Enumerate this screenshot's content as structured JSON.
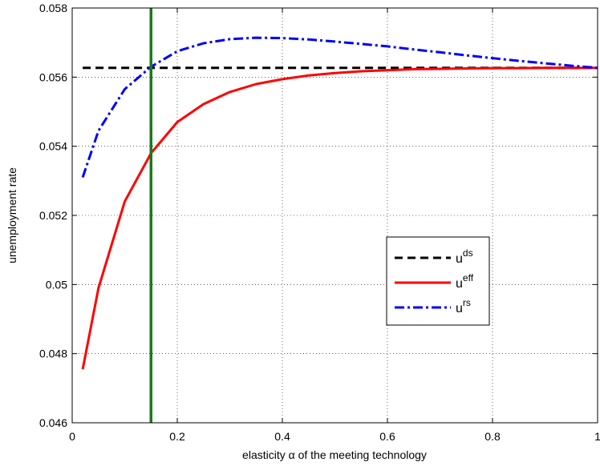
{
  "chart_data": {
    "type": "line",
    "title": "",
    "xlabel": "elasticity α of the meeting technology",
    "ylabel": "unemployment rate",
    "xlim": [
      0,
      1
    ],
    "ylim": [
      0.046,
      0.058
    ],
    "xticks": [
      0,
      0.2,
      0.4,
      0.6,
      0.8,
      1
    ],
    "xtick_labels": [
      "0",
      "0.2",
      "0.4",
      "0.6",
      "0.8",
      "1"
    ],
    "yticks": [
      0.046,
      0.048,
      0.05,
      0.052,
      0.054,
      0.056,
      0.058
    ],
    "ytick_labels": [
      "0.046",
      "0.048",
      "0.05",
      "0.052",
      "0.054",
      "0.056",
      "0.058"
    ],
    "grid": true,
    "legend_position": "right",
    "vertical_line": {
      "x": 0.15,
      "color": "#1a7a1a"
    },
    "series": [
      {
        "name": "u",
        "sup": "ds",
        "color": "#000000",
        "style": "dashed",
        "x": [
          0.02,
          1.0
        ],
        "y": [
          0.05627,
          0.05627
        ]
      },
      {
        "name": "u",
        "sup": "eff",
        "color": "#ff0000",
        "style": "solid",
        "x": [
          0.02,
          0.05,
          0.1,
          0.15,
          0.2,
          0.25,
          0.3,
          0.35,
          0.4,
          0.45,
          0.5,
          0.55,
          0.6,
          0.65,
          0.7,
          0.75,
          0.8,
          0.85,
          0.9,
          0.95,
          1.0
        ],
        "y": [
          0.04755,
          0.0499,
          0.0524,
          0.0538,
          0.0547,
          0.05522,
          0.05557,
          0.0558,
          0.05594,
          0.05605,
          0.05612,
          0.05617,
          0.0562,
          0.05623,
          0.05624,
          0.05625,
          0.05626,
          0.05626,
          0.05627,
          0.05627,
          0.05627
        ]
      },
      {
        "name": "u",
        "sup": "rs",
        "color": "#0000ff",
        "style": "dashdot",
        "x": [
          0.02,
          0.05,
          0.1,
          0.15,
          0.2,
          0.25,
          0.3,
          0.35,
          0.4,
          0.45,
          0.5,
          0.55,
          0.6,
          0.65,
          0.7,
          0.75,
          0.8,
          0.85,
          0.9,
          0.95,
          1.0
        ],
        "y": [
          0.0531,
          0.05445,
          0.05565,
          0.0563,
          0.05675,
          0.05698,
          0.0571,
          0.05714,
          0.05713,
          0.05709,
          0.05703,
          0.05696,
          0.05689,
          0.0568,
          0.05672,
          0.05663,
          0.05655,
          0.05647,
          0.0564,
          0.05633,
          0.05627
        ]
      }
    ]
  }
}
